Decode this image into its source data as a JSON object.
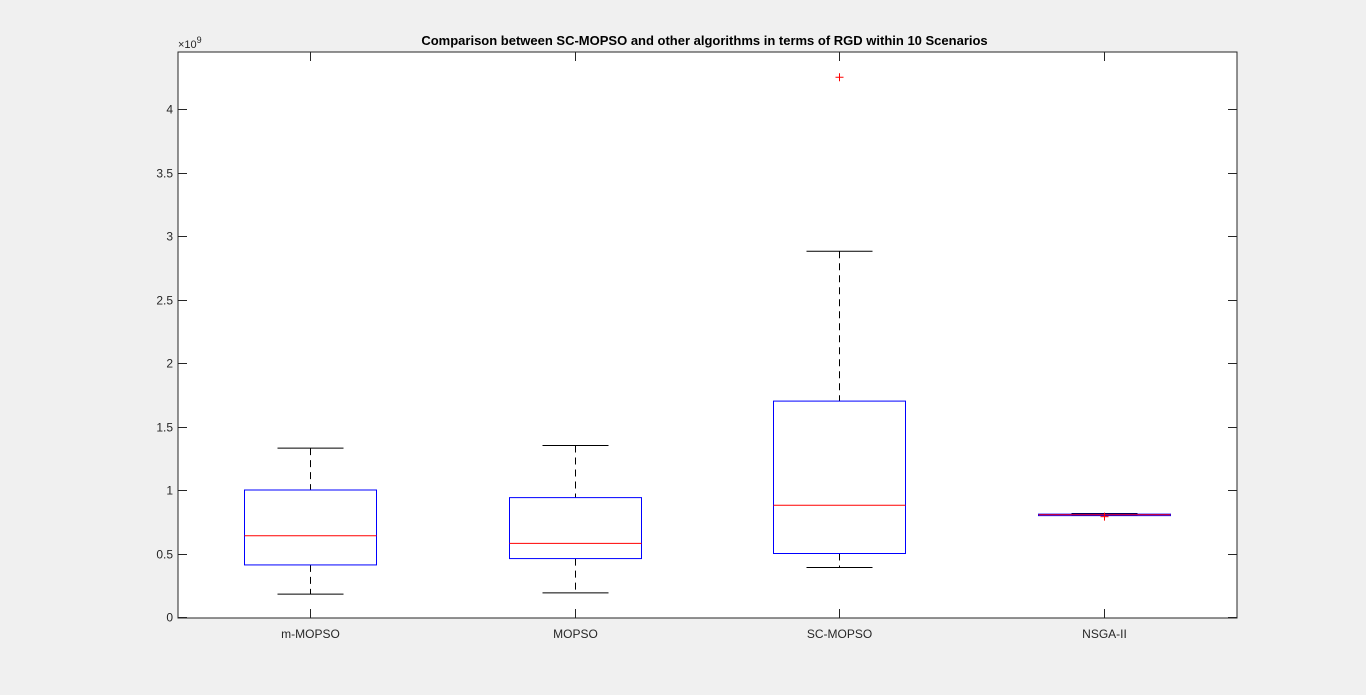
{
  "chart_data": {
    "type": "boxplot",
    "title": "Comparison between SC-MOPSO and other algorithms in terms of RGD within 10 Scenarios",
    "xlabel": "",
    "ylabel": "",
    "y_exponent_label": "×10",
    "y_exponent_power": "9",
    "ylim": [
      0,
      4.4
    ],
    "y_ticks": [
      0,
      0.5,
      1,
      1.5,
      2,
      2.5,
      3,
      3.5,
      4
    ],
    "y_tick_labels": [
      "0",
      "0.5",
      "1",
      "1.5",
      "2",
      "2.5",
      "3",
      "3.5",
      "4"
    ],
    "grid": false,
    "categories": [
      "m-MOPSO",
      "MOPSO",
      "SC-MOPSO",
      "NSGA-II"
    ],
    "boxes": [
      {
        "min": 0.18,
        "q1": 0.41,
        "median": 0.64,
        "q3": 1.0,
        "max": 1.33,
        "outliers": []
      },
      {
        "min": 0.19,
        "q1": 0.46,
        "median": 0.58,
        "q3": 0.94,
        "max": 1.35,
        "outliers": []
      },
      {
        "min": 0.39,
        "q1": 0.5,
        "median": 0.88,
        "q3": 1.7,
        "max": 2.88,
        "outliers": [
          4.25
        ]
      },
      {
        "min": 0.8,
        "q1": 0.8,
        "median": 0.805,
        "q3": 0.81,
        "max": 0.815,
        "outliers": [
          0.79
        ]
      }
    ],
    "colors": {
      "box": "#0000ff",
      "median": "#ff0000",
      "whisker": "#000000",
      "outlier": "#ff0000",
      "axes": "#262626",
      "plot_bg": "#ffffff",
      "figure_bg": "#f0f0f0"
    }
  }
}
